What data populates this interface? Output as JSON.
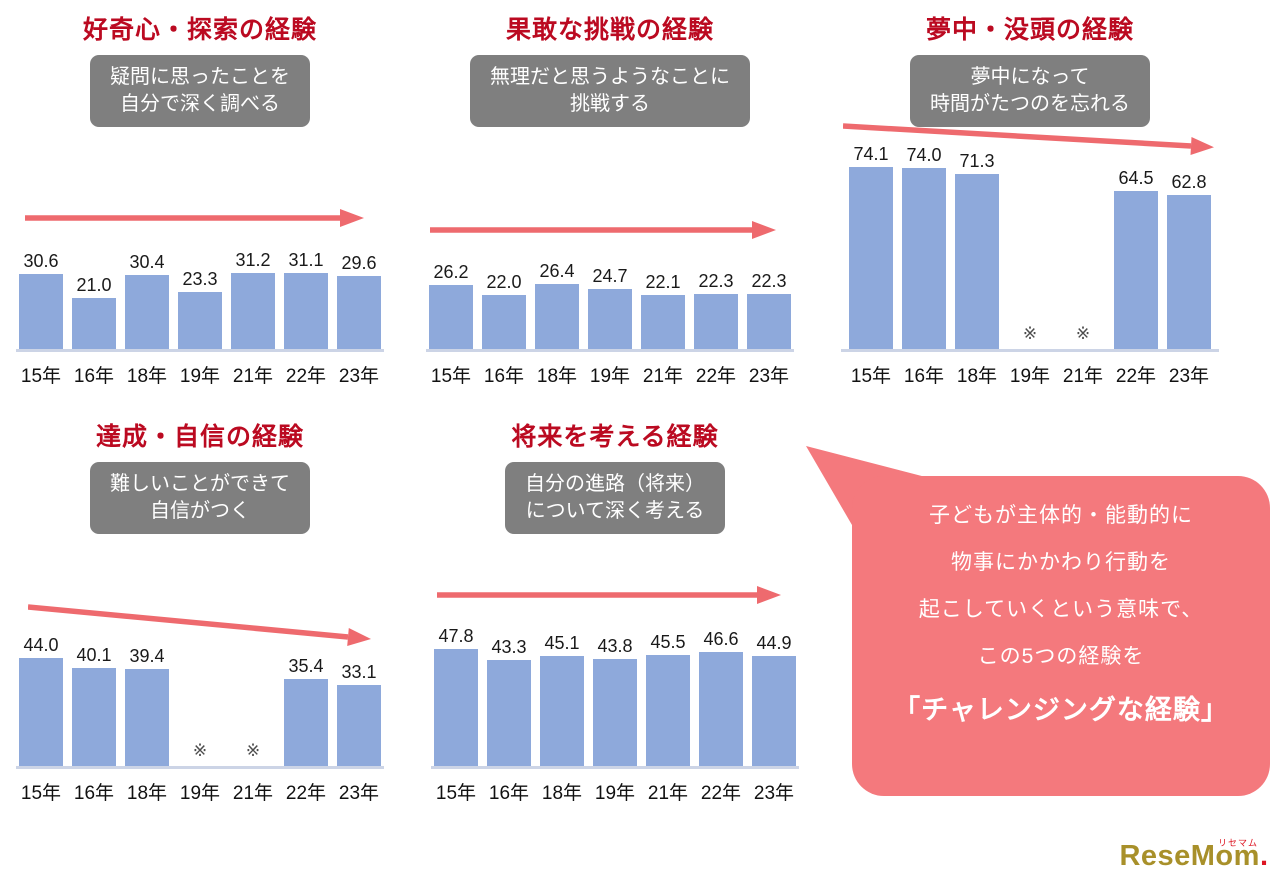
{
  "colors": {
    "title": "#bb0a21",
    "bar": "#8ea9db",
    "arrow": "#ee6a6e",
    "box_bg": "#7f7f7f",
    "box_text": "#ffffff",
    "bubble_bg": "#f4797d",
    "baseline": "#ccd4e6"
  },
  "chart_data": [
    {
      "type": "bar",
      "title": "好奇心・探索の経験",
      "subtitle": "疑問に思ったことを\n自分で深く調べる",
      "categories": [
        "15年",
        "16年",
        "18年",
        "19年",
        "21年",
        "22年",
        "23年"
      ],
      "values": [
        30.6,
        21.0,
        30.4,
        23.3,
        31.2,
        31.1,
        29.6
      ],
      "trend_arrow": "flat",
      "ylim": [
        0,
        80
      ],
      "grid": false
    },
    {
      "type": "bar",
      "title": "果敢な挑戦の経験",
      "subtitle": "無理だと思うようなことに\n挑戦する",
      "categories": [
        "15年",
        "16年",
        "18年",
        "19年",
        "21年",
        "22年",
        "23年"
      ],
      "values": [
        26.2,
        22.0,
        26.4,
        24.7,
        22.1,
        22.3,
        22.3
      ],
      "trend_arrow": "flat",
      "ylim": [
        0,
        80
      ],
      "grid": false
    },
    {
      "type": "bar",
      "title": "夢中・没頭の経験",
      "subtitle": "夢中になって\n時間がたつのを忘れる",
      "categories": [
        "15年",
        "16年",
        "18年",
        "19年",
        "21年",
        "22年",
        "23年"
      ],
      "values": [
        74.1,
        74.0,
        71.3,
        null,
        null,
        64.5,
        62.8
      ],
      "missing_label": "※",
      "missing_indexes": [
        3,
        4
      ],
      "trend_arrow": "down",
      "ylim": [
        0,
        80
      ],
      "grid": false
    },
    {
      "type": "bar",
      "title": "達成・自信の経験",
      "subtitle": "難しいことができて\n自信がつく",
      "categories": [
        "15年",
        "16年",
        "18年",
        "19年",
        "21年",
        "22年",
        "23年"
      ],
      "values": [
        44.0,
        40.1,
        39.4,
        null,
        null,
        35.4,
        33.1
      ],
      "missing_label": "※",
      "missing_indexes": [
        3,
        4
      ],
      "trend_arrow": "down",
      "ylim": [
        0,
        80
      ],
      "grid": false
    },
    {
      "type": "bar",
      "title": "将来を考える経験",
      "subtitle": "自分の進路（将来）\nについて深く考える",
      "categories": [
        "15年",
        "16年",
        "18年",
        "19年",
        "21年",
        "22年",
        "23年"
      ],
      "values": [
        47.8,
        43.3,
        45.1,
        43.8,
        45.5,
        46.6,
        44.9
      ],
      "trend_arrow": "flat",
      "ylim": [
        0,
        80
      ],
      "grid": false
    }
  ],
  "callout": {
    "body": "子どもが主体的・能動的に\n物事にかかわり行動を\n起こしていくという意味で、\nこの5つの経験を",
    "highlight": "「チャレンジングな経験」"
  },
  "logo": {
    "text": "ReseMom",
    "dot": ".",
    "ruby": "リセマム"
  }
}
